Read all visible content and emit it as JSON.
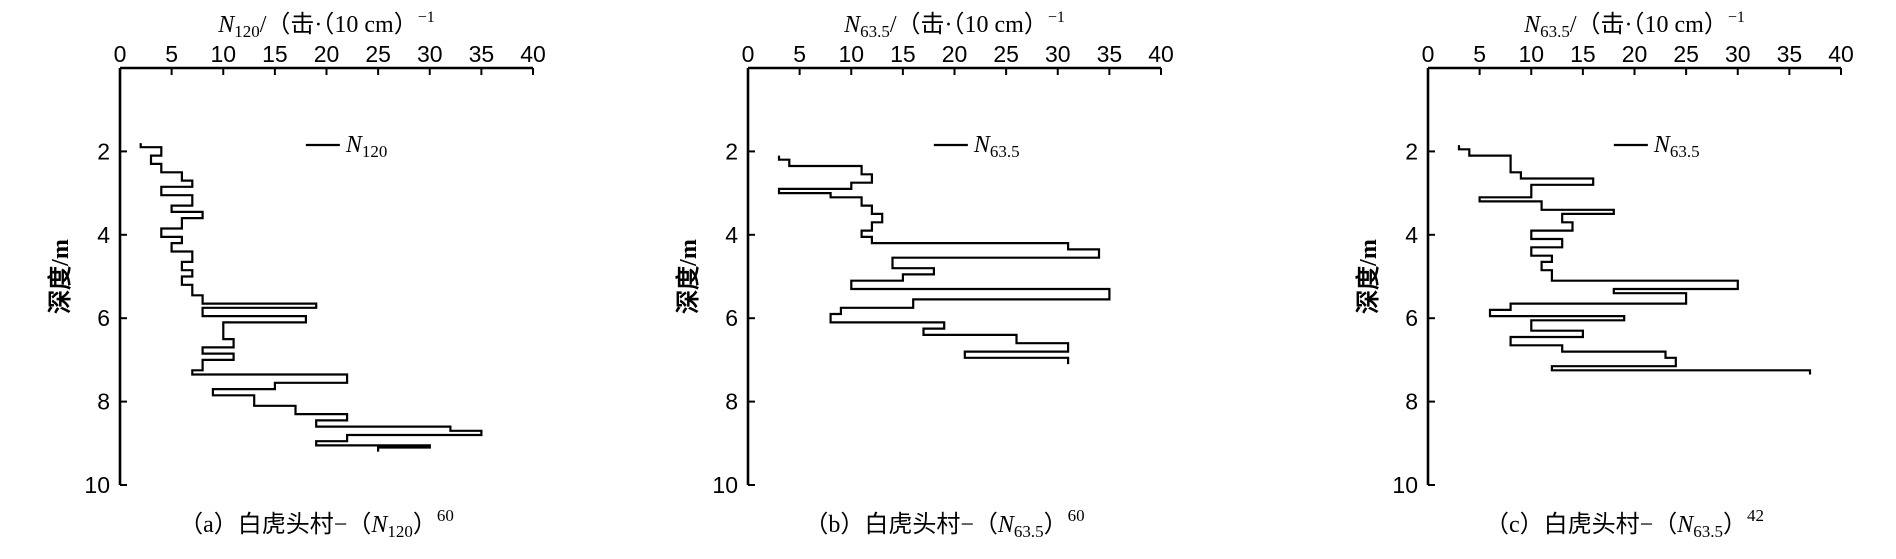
{
  "chart_data": [
    {
      "type": "line",
      "panel": "a",
      "title": "",
      "xlabel": {
        "symbol": "N",
        "sub": "120",
        "rest": "/（击·（10 cm）",
        "sup": "−1"
      },
      "ylabel": "深度/m",
      "xlim": [
        0,
        40
      ],
      "xticks": [
        0,
        5,
        10,
        15,
        20,
        25,
        30,
        35,
        40
      ],
      "ylim": [
        0,
        10
      ],
      "yticks": [
        2,
        4,
        6,
        8,
        10
      ],
      "legend": {
        "symbol": "N",
        "sub": "120",
        "position": "top-right"
      },
      "caption": {
        "prefix": "（a）白虎头村−（",
        "symbol": "N",
        "sub": "120",
        "suffix": "）",
        "sup": "60"
      },
      "series": [
        {
          "name": "N120",
          "points": [
            [
              2,
              1.8
            ],
            [
              2,
              1.9
            ],
            [
              4,
              1.9
            ],
            [
              4,
              2.1
            ],
            [
              3,
              2.1
            ],
            [
              3,
              2.3
            ],
            [
              4,
              2.3
            ],
            [
              4,
              2.5
            ],
            [
              6,
              2.5
            ],
            [
              6,
              2.7
            ],
            [
              7,
              2.7
            ],
            [
              7,
              2.85
            ],
            [
              4,
              2.85
            ],
            [
              4,
              3.05
            ],
            [
              7,
              3.05
            ],
            [
              7,
              3.3
            ],
            [
              5,
              3.3
            ],
            [
              5,
              3.45
            ],
            [
              8,
              3.45
            ],
            [
              8,
              3.6
            ],
            [
              6,
              3.6
            ],
            [
              6,
              3.85
            ],
            [
              4,
              3.85
            ],
            [
              4,
              4.05
            ],
            [
              6,
              4.05
            ],
            [
              6,
              4.2
            ],
            [
              5,
              4.2
            ],
            [
              5,
              4.4
            ],
            [
              7,
              4.4
            ],
            [
              7,
              4.65
            ],
            [
              6,
              4.65
            ],
            [
              6,
              4.85
            ],
            [
              7,
              4.85
            ],
            [
              7,
              5.0
            ],
            [
              6,
              5.0
            ],
            [
              6,
              5.2
            ],
            [
              7,
              5.2
            ],
            [
              7,
              5.45
            ],
            [
              8,
              5.45
            ],
            [
              8,
              5.65
            ],
            [
              19,
              5.65
            ],
            [
              19,
              5.75
            ],
            [
              8,
              5.75
            ],
            [
              8,
              5.95
            ],
            [
              18,
              5.95
            ],
            [
              18,
              6.1
            ],
            [
              10,
              6.1
            ],
            [
              10,
              6.5
            ],
            [
              11,
              6.5
            ],
            [
              11,
              6.7
            ],
            [
              8,
              6.7
            ],
            [
              8,
              6.85
            ],
            [
              11,
              6.85
            ],
            [
              11,
              7.0
            ],
            [
              8,
              7.0
            ],
            [
              8,
              7.25
            ],
            [
              7,
              7.25
            ],
            [
              7,
              7.35
            ],
            [
              22,
              7.35
            ],
            [
              22,
              7.55
            ],
            [
              15,
              7.55
            ],
            [
              15,
              7.7
            ],
            [
              9,
              7.7
            ],
            [
              9,
              7.85
            ],
            [
              13,
              7.85
            ],
            [
              13,
              8.1
            ],
            [
              17,
              8.1
            ],
            [
              17,
              8.3
            ],
            [
              22,
              8.3
            ],
            [
              22,
              8.45
            ],
            [
              19,
              8.45
            ],
            [
              19,
              8.6
            ],
            [
              32,
              8.6
            ],
            [
              32,
              8.7
            ],
            [
              35,
              8.7
            ],
            [
              35,
              8.8
            ],
            [
              22,
              8.8
            ],
            [
              22,
              8.95
            ],
            [
              19,
              8.95
            ],
            [
              19,
              9.05
            ],
            [
              30,
              9.05
            ],
            [
              30,
              9.1
            ],
            [
              25,
              9.1
            ],
            [
              25,
              9.2
            ]
          ]
        }
      ]
    },
    {
      "type": "line",
      "panel": "b",
      "title": "",
      "xlabel": {
        "symbol": "N",
        "sub": "63.5",
        "rest": "/（击·（10 cm）",
        "sup": "−1"
      },
      "ylabel": "深度/m",
      "xlim": [
        0,
        40
      ],
      "xticks": [
        0,
        5,
        10,
        15,
        20,
        25,
        30,
        35,
        40
      ],
      "ylim": [
        0,
        10
      ],
      "yticks": [
        2,
        4,
        6,
        8,
        10
      ],
      "legend": {
        "symbol": "N",
        "sub": "63.5",
        "position": "top-right"
      },
      "caption": {
        "prefix": "（b）白虎头村−（",
        "symbol": "N",
        "sub": "63.5",
        "suffix": "）",
        "sup": "60"
      },
      "series": [
        {
          "name": "N63.5",
          "points": [
            [
              3,
              2.1
            ],
            [
              3,
              2.2
            ],
            [
              4,
              2.2
            ],
            [
              4,
              2.35
            ],
            [
              11,
              2.35
            ],
            [
              11,
              2.55
            ],
            [
              12,
              2.55
            ],
            [
              12,
              2.75
            ],
            [
              10,
              2.75
            ],
            [
              10,
              2.9
            ],
            [
              3,
              2.9
            ],
            [
              3,
              3.0
            ],
            [
              8,
              3.0
            ],
            [
              8,
              3.1
            ],
            [
              11,
              3.1
            ],
            [
              11,
              3.3
            ],
            [
              12,
              3.3
            ],
            [
              12,
              3.5
            ],
            [
              13,
              3.5
            ],
            [
              13,
              3.7
            ],
            [
              12,
              3.7
            ],
            [
              12,
              3.9
            ],
            [
              11,
              3.9
            ],
            [
              11,
              4.05
            ],
            [
              12,
              4.05
            ],
            [
              12,
              4.2
            ],
            [
              31,
              4.2
            ],
            [
              31,
              4.35
            ],
            [
              34,
              4.35
            ],
            [
              34,
              4.55
            ],
            [
              14,
              4.55
            ],
            [
              14,
              4.8
            ],
            [
              18,
              4.8
            ],
            [
              18,
              4.95
            ],
            [
              15,
              4.95
            ],
            [
              15,
              5.1
            ],
            [
              10,
              5.1
            ],
            [
              10,
              5.3
            ],
            [
              35,
              5.3
            ],
            [
              35,
              5.55
            ],
            [
              16,
              5.55
            ],
            [
              16,
              5.75
            ],
            [
              9,
              5.75
            ],
            [
              9,
              5.9
            ],
            [
              8,
              5.9
            ],
            [
              8,
              6.1
            ],
            [
              19,
              6.1
            ],
            [
              19,
              6.25
            ],
            [
              17,
              6.25
            ],
            [
              17,
              6.4
            ],
            [
              26,
              6.4
            ],
            [
              26,
              6.6
            ],
            [
              31,
              6.6
            ],
            [
              31,
              6.8
            ],
            [
              21,
              6.8
            ],
            [
              21,
              6.95
            ],
            [
              31,
              6.95
            ],
            [
              31,
              7.1
            ]
          ]
        }
      ]
    },
    {
      "type": "line",
      "panel": "c",
      "title": "",
      "xlabel": {
        "symbol": "N",
        "sub": "63.5",
        "rest": "/（击·（10 cm）",
        "sup": "−1"
      },
      "ylabel": "深度/m",
      "xlim": [
        0,
        40
      ],
      "xticks": [
        0,
        5,
        10,
        15,
        20,
        25,
        30,
        35,
        40
      ],
      "ylim": [
        0,
        10
      ],
      "yticks": [
        2,
        4,
        6,
        8,
        10
      ],
      "legend": {
        "symbol": "N",
        "sub": "63.5",
        "position": "top-right"
      },
      "caption": {
        "prefix": "（c）白虎头村−（",
        "symbol": "N",
        "sub": "63.5",
        "suffix": "）",
        "sup": "42"
      },
      "series": [
        {
          "name": "N63.5",
          "points": [
            [
              3,
              1.85
            ],
            [
              3,
              1.95
            ],
            [
              4,
              1.95
            ],
            [
              4,
              2.1
            ],
            [
              8,
              2.1
            ],
            [
              8,
              2.5
            ],
            [
              9,
              2.5
            ],
            [
              9,
              2.65
            ],
            [
              16,
              2.65
            ],
            [
              16,
              2.8
            ],
            [
              10,
              2.8
            ],
            [
              10,
              3.1
            ],
            [
              5,
              3.1
            ],
            [
              5,
              3.2
            ],
            [
              11,
              3.2
            ],
            [
              11,
              3.4
            ],
            [
              18,
              3.4
            ],
            [
              18,
              3.5
            ],
            [
              13,
              3.5
            ],
            [
              13,
              3.7
            ],
            [
              14,
              3.7
            ],
            [
              14,
              3.9
            ],
            [
              10,
              3.9
            ],
            [
              10,
              4.1
            ],
            [
              13,
              4.1
            ],
            [
              13,
              4.3
            ],
            [
              10,
              4.3
            ],
            [
              10,
              4.5
            ],
            [
              12,
              4.5
            ],
            [
              12,
              4.65
            ],
            [
              11,
              4.65
            ],
            [
              11,
              4.85
            ],
            [
              12,
              4.85
            ],
            [
              12,
              5.1
            ],
            [
              30,
              5.1
            ],
            [
              30,
              5.3
            ],
            [
              18,
              5.3
            ],
            [
              18,
              5.4
            ],
            [
              25,
              5.4
            ],
            [
              25,
              5.65
            ],
            [
              8,
              5.65
            ],
            [
              8,
              5.8
            ],
            [
              6,
              5.8
            ],
            [
              6,
              5.95
            ],
            [
              19,
              5.95
            ],
            [
              19,
              6.05
            ],
            [
              10,
              6.05
            ],
            [
              10,
              6.3
            ],
            [
              15,
              6.3
            ],
            [
              15,
              6.45
            ],
            [
              8,
              6.45
            ],
            [
              8,
              6.65
            ],
            [
              13,
              6.65
            ],
            [
              13,
              6.8
            ],
            [
              23,
              6.8
            ],
            [
              23,
              6.95
            ],
            [
              24,
              6.95
            ],
            [
              24,
              7.15
            ],
            [
              12,
              7.15
            ],
            [
              12,
              7.25
            ],
            [
              37,
              7.25
            ],
            [
              37,
              7.35
            ]
          ]
        }
      ]
    }
  ]
}
